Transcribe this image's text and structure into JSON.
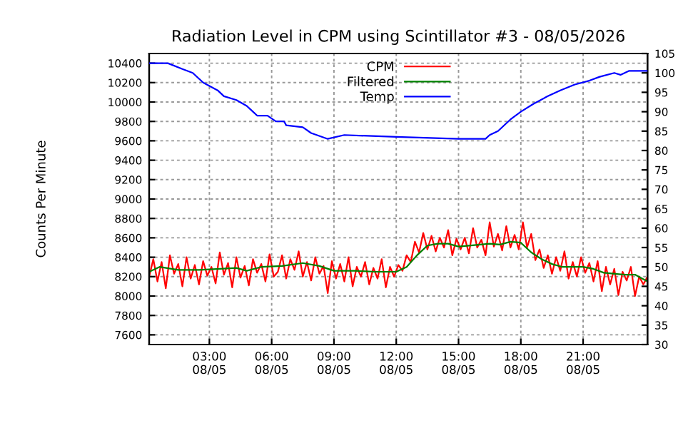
{
  "chart_data": {
    "type": "line",
    "title": "Radiation Level in CPM using Scintillator #3 - 08/05/2026",
    "ylabel": "Counts Per Minute",
    "x": [
      "2026-08-05T00:06",
      "2026-08-05T00:18",
      "2026-08-05T00:30",
      "2026-08-05T00:42",
      "2026-08-05T00:54",
      "2026-08-05T01:06",
      "2026-08-05T01:18",
      "2026-08-05T01:30",
      "2026-08-05T01:42",
      "2026-08-05T01:54",
      "2026-08-05T02:06",
      "2026-08-05T02:18",
      "2026-08-05T02:30",
      "2026-08-05T02:42",
      "2026-08-05T02:54",
      "2026-08-05T03:06",
      "2026-08-05T03:18",
      "2026-08-05T03:30",
      "2026-08-05T03:42",
      "2026-08-05T03:54",
      "2026-08-05T04:06",
      "2026-08-05T04:18",
      "2026-08-05T04:30",
      "2026-08-05T04:42",
      "2026-08-05T04:54",
      "2026-08-05T05:06",
      "2026-08-05T05:18",
      "2026-08-05T05:30",
      "2026-08-05T05:42",
      "2026-08-05T05:54",
      "2026-08-05T06:06",
      "2026-08-05T06:18",
      "2026-08-05T06:30",
      "2026-08-05T06:42",
      "2026-08-05T06:54",
      "2026-08-05T07:06",
      "2026-08-05T07:18",
      "2026-08-05T07:30",
      "2026-08-05T07:42",
      "2026-08-05T07:54",
      "2026-08-05T08:06",
      "2026-08-05T08:18",
      "2026-08-05T08:30",
      "2026-08-05T08:42",
      "2026-08-05T08:54",
      "2026-08-05T09:06",
      "2026-08-05T09:18",
      "2026-08-05T09:30",
      "2026-08-05T09:42",
      "2026-08-05T09:54",
      "2026-08-05T10:06",
      "2026-08-05T10:18",
      "2026-08-05T10:30",
      "2026-08-05T10:42",
      "2026-08-05T10:54",
      "2026-08-05T11:06",
      "2026-08-05T11:18",
      "2026-08-05T11:30",
      "2026-08-05T11:42",
      "2026-08-05T11:54",
      "2026-08-05T12:06",
      "2026-08-05T12:18",
      "2026-08-05T12:30",
      "2026-08-05T12:42",
      "2026-08-05T12:54",
      "2026-08-05T13:06",
      "2026-08-05T13:18",
      "2026-08-05T13:30",
      "2026-08-05T13:42",
      "2026-08-05T13:54",
      "2026-08-05T14:06",
      "2026-08-05T14:18",
      "2026-08-05T14:30",
      "2026-08-05T14:42",
      "2026-08-05T14:54",
      "2026-08-05T15:06",
      "2026-08-05T15:18",
      "2026-08-05T15:30",
      "2026-08-05T15:42",
      "2026-08-05T15:54",
      "2026-08-05T16:06",
      "2026-08-05T16:18",
      "2026-08-05T16:30",
      "2026-08-05T16:42",
      "2026-08-05T16:54",
      "2026-08-05T17:06",
      "2026-08-05T17:18",
      "2026-08-05T17:30",
      "2026-08-05T17:42",
      "2026-08-05T17:54",
      "2026-08-05T18:06",
      "2026-08-05T18:18",
      "2026-08-05T18:30",
      "2026-08-05T18:42",
      "2026-08-05T18:54",
      "2026-08-05T19:06",
      "2026-08-05T19:18",
      "2026-08-05T19:30",
      "2026-08-05T19:42",
      "2026-08-05T19:54",
      "2026-08-05T20:06",
      "2026-08-05T20:18",
      "2026-08-05T20:30",
      "2026-08-05T20:42",
      "2026-08-05T20:54",
      "2026-08-05T21:06",
      "2026-08-05T21:18",
      "2026-08-05T21:30",
      "2026-08-05T21:42",
      "2026-08-05T21:54",
      "2026-08-05T22:06",
      "2026-08-05T22:18",
      "2026-08-05T22:30",
      "2026-08-05T22:42",
      "2026-08-05T22:54",
      "2026-08-05T23:06",
      "2026-08-05T23:18",
      "2026-08-05T23:30",
      "2026-08-05T23:42",
      "2026-08-05T23:54",
      "2026-08-06T00:06"
    ],
    "series": [
      {
        "name": "CPM",
        "color": "#ff0000",
        "values": [
          8200,
          8380,
          8150,
          8350,
          8080,
          8420,
          8230,
          8330,
          8100,
          8400,
          8180,
          8320,
          8120,
          8360,
          8210,
          8300,
          8130,
          8450,
          8220,
          8340,
          8090,
          8400,
          8190,
          8310,
          8110,
          8380,
          8240,
          8330,
          8150,
          8430,
          8200,
          8250,
          8420,
          8180,
          8380,
          8270,
          8460,
          8200,
          8350,
          8160,
          8400,
          8230,
          8310,
          8030,
          8360,
          8180,
          8330,
          8150,
          8400,
          8100,
          8300,
          8200,
          8350,
          8120,
          8290,
          8180,
          8380,
          8090,
          8300,
          8200,
          8320,
          8260,
          8420,
          8350,
          8560,
          8450,
          8650,
          8480,
          8620,
          8460,
          8600,
          8500,
          8680,
          8420,
          8590,
          8480,
          8600,
          8440,
          8700,
          8500,
          8580,
          8420,
          8760,
          8510,
          8640,
          8470,
          8720,
          8500,
          8630,
          8480,
          8760,
          8500,
          8640,
          8370,
          8480,
          8290,
          8420,
          8230,
          8400,
          8260,
          8460,
          8180,
          8350,
          8200,
          8400,
          8240,
          8340,
          8150,
          8360,
          8050,
          8300,
          8120,
          8280,
          8010,
          8250,
          8160,
          8300,
          8000,
          8200,
          8120,
          8200
        ]
      },
      {
        "name": "Filtered",
        "color": "#008000",
        "x": [
          "2026-08-05T00:06",
          "2026-08-05T00:36",
          "2026-08-05T01:30",
          "2026-08-05T02:30",
          "2026-08-05T03:30",
          "2026-08-05T04:18",
          "2026-08-05T04:48",
          "2026-08-05T05:30",
          "2026-08-05T06:30",
          "2026-08-05T07:30",
          "2026-08-05T08:18",
          "2026-08-05T09:00",
          "2026-08-05T10:00",
          "2026-08-05T11:00",
          "2026-08-05T12:00",
          "2026-08-05T12:30",
          "2026-08-05T13:00",
          "2026-08-05T13:30",
          "2026-08-05T14:00",
          "2026-08-05T14:30",
          "2026-08-05T15:00",
          "2026-08-05T15:30",
          "2026-08-05T16:30",
          "2026-08-05T17:00",
          "2026-08-05T17:30",
          "2026-08-05T18:00",
          "2026-08-05T18:30",
          "2026-08-05T19:00",
          "2026-08-05T19:30",
          "2026-08-05T20:00",
          "2026-08-05T21:00",
          "2026-08-05T21:30",
          "2026-08-05T22:00",
          "2026-08-05T23:00",
          "2026-08-05T23:30",
          "2026-08-06T00:06"
        ],
        "values": [
          8250,
          8300,
          8270,
          8270,
          8280,
          8290,
          8260,
          8300,
          8310,
          8340,
          8310,
          8260,
          8260,
          8250,
          8250,
          8300,
          8420,
          8520,
          8540,
          8540,
          8510,
          8520,
          8540,
          8530,
          8560,
          8550,
          8450,
          8380,
          8330,
          8300,
          8300,
          8280,
          8240,
          8220,
          8220,
          8150
        ]
      },
      {
        "name": "Temp",
        "color": "#0000ff",
        "axis": "y2",
        "x": [
          "2026-08-05T00:06",
          "2026-08-05T01:00",
          "2026-08-05T01:42",
          "2026-08-05T02:12",
          "2026-08-05T02:42",
          "2026-08-05T03:24",
          "2026-08-05T03:42",
          "2026-08-05T04:18",
          "2026-08-05T04:48",
          "2026-08-05T05:06",
          "2026-08-05T05:18",
          "2026-08-05T05:48",
          "2026-08-05T06:12",
          "2026-08-05T06:36",
          "2026-08-05T06:42",
          "2026-08-05T07:30",
          "2026-08-05T07:54",
          "2026-08-05T08:42",
          "2026-08-05T09:30",
          "2026-08-05T12:00",
          "2026-08-05T15:00",
          "2026-08-05T16:18",
          "2026-08-05T16:30",
          "2026-08-05T16:54",
          "2026-08-05T17:30",
          "2026-08-05T18:00",
          "2026-08-05T18:36",
          "2026-08-05T19:18",
          "2026-08-05T19:54",
          "2026-08-05T20:36",
          "2026-08-05T21:18",
          "2026-08-05T21:48",
          "2026-08-05T22:30",
          "2026-08-05T22:48",
          "2026-08-05T23:12",
          "2026-08-06T00:06"
        ],
        "values": [
          102.5,
          102.5,
          101,
          100,
          97.5,
          95.5,
          94,
          93,
          91.5,
          90,
          89,
          89,
          87.5,
          87.5,
          86.5,
          86,
          84.5,
          83,
          84,
          83.5,
          83,
          83,
          84,
          85,
          88,
          90,
          92,
          94,
          95.5,
          97,
          98,
          99,
          100,
          99.5,
          100.5,
          100.5
        ]
      }
    ],
    "xlim": [
      "2026-08-05T00:06",
      "2026-08-06T00:06"
    ],
    "xticks": [
      {
        "value": "2026-08-05T03:00",
        "label": "03:00\n08/05"
      },
      {
        "value": "2026-08-05T06:00",
        "label": "06:00\n08/05"
      },
      {
        "value": "2026-08-05T09:00",
        "label": "09:00\n08/05"
      },
      {
        "value": "2026-08-05T12:00",
        "label": "12:00\n08/05"
      },
      {
        "value": "2026-08-05T15:00",
        "label": "15:00\n08/05"
      },
      {
        "value": "2026-08-05T18:00",
        "label": "18:00\n08/05"
      },
      {
        "value": "2026-08-05T21:00",
        "label": "21:00\n08/05"
      }
    ],
    "ylim": [
      7500,
      10500
    ],
    "yticks": [
      7600,
      7800,
      8000,
      8200,
      8400,
      8600,
      8800,
      9000,
      9200,
      9400,
      9600,
      9800,
      10000,
      10200,
      10400
    ],
    "y2lim": [
      30,
      105
    ],
    "y2ticks": [
      30,
      35,
      40,
      45,
      50,
      55,
      60,
      65,
      70,
      75,
      80,
      85,
      90,
      95,
      100,
      105
    ],
    "grid": true,
    "legend": "top center",
    "marker": "none",
    "line_style": "solid"
  }
}
